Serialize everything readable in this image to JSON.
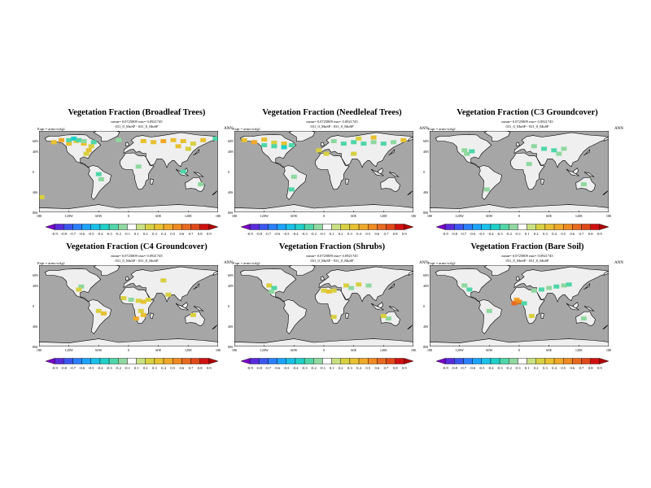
{
  "chart_data": [
    {
      "type": "heatmap",
      "title": "Vegetation Fraction (Broadleaf Trees)",
      "subtitle_stats": "mean= 0.0725809 rms= 0.0921745",
      "subtitle_case": "031_0_MuSP - 031_0_MuSP",
      "expt": "Expt = arms-tcrlg1",
      "season": "ANN",
      "lat_ticks": [
        "60N",
        "40N",
        "0",
        "40S",
        "80S"
      ],
      "lon_ticks": [
        "180",
        "120W",
        "60W",
        "0",
        "60E",
        "120E",
        "180"
      ],
      "colorbar_levels": [
        "-0.9",
        "-0.8",
        "-0.7",
        "-0.6",
        "-0.5",
        "-0.4",
        "-0.3",
        "-0.2",
        "-0.1",
        "0.1",
        "0.2",
        "0.3",
        "0.4",
        "0.5",
        "0.6",
        "0.7",
        "0.8",
        "0.9"
      ],
      "anomalies": [
        {
          "lon": -150,
          "lat": 58,
          "value": 0.3
        },
        {
          "lon": -135,
          "lat": 62,
          "value": 0.4
        },
        {
          "lon": -120,
          "lat": 55,
          "value": 0.3
        },
        {
          "lon": -105,
          "lat": 60,
          "value": 0.2
        },
        {
          "lon": -90,
          "lat": 55,
          "value": 0.3
        },
        {
          "lon": -75,
          "lat": 50,
          "value": 0.2
        },
        {
          "lon": -120,
          "lat": 62,
          "value": -0.3
        },
        {
          "lon": -110,
          "lat": 65,
          "value": -0.4
        },
        {
          "lon": -100,
          "lat": 62,
          "value": -0.3
        },
        {
          "lon": -90,
          "lat": 60,
          "value": -0.2
        },
        {
          "lon": -70,
          "lat": 58,
          "value": -0.3
        },
        {
          "lon": -80,
          "lat": 42,
          "value": 0.3
        },
        {
          "lon": -85,
          "lat": 35,
          "value": 0.2
        },
        {
          "lon": 30,
          "lat": 60,
          "value": 0.3
        },
        {
          "lon": 50,
          "lat": 58,
          "value": 0.3
        },
        {
          "lon": 70,
          "lat": 60,
          "value": 0.4
        },
        {
          "lon": 90,
          "lat": 62,
          "value": 0.3
        },
        {
          "lon": 110,
          "lat": 60,
          "value": 0.3
        },
        {
          "lon": 130,
          "lat": 55,
          "value": 0.2
        },
        {
          "lon": 150,
          "lat": 62,
          "value": 0.3
        },
        {
          "lon": 100,
          "lat": 50,
          "value": 0.3
        },
        {
          "lon": 120,
          "lat": 45,
          "value": 0.2
        },
        {
          "lon": -20,
          "lat": 62,
          "value": -0.2
        },
        {
          "lon": 20,
          "lat": 10,
          "value": -0.2
        },
        {
          "lon": -60,
          "lat": -5,
          "value": -0.3
        },
        {
          "lon": -55,
          "lat": -15,
          "value": -0.2
        },
        {
          "lon": 110,
          "lat": 0,
          "value": -0.3
        },
        {
          "lon": 145,
          "lat": -25,
          "value": -0.2
        },
        {
          "lon": -175,
          "lat": -50,
          "value": 0.2
        },
        {
          "lon": 175,
          "lat": 65,
          "value": -0.3
        }
      ]
    },
    {
      "type": "heatmap",
      "title": "Vegetation Fraction (Needleleaf Trees)",
      "subtitle_stats": "mean= 0.0725809 rms= 0.0921745",
      "subtitle_case": "031_0_MuSP - 031_0_MuSP",
      "expt": "Expt = arms-tcrlg1",
      "season": "ANN",
      "lat_ticks": [
        "60N",
        "40N",
        "0",
        "40S",
        "80S"
      ],
      "lon_ticks": [
        "180",
        "120W",
        "60W",
        "0",
        "60E",
        "120E",
        "180"
      ],
      "colorbar_levels": [
        "-0.9",
        "-0.8",
        "-0.7",
        "-0.6",
        "-0.5",
        "-0.4",
        "-0.3",
        "-0.2",
        "-0.1",
        "0.1",
        "0.2",
        "0.3",
        "0.4",
        "0.5",
        "0.6",
        "0.7",
        "0.8",
        "0.9"
      ],
      "anomalies": [
        {
          "lon": -160,
          "lat": 62,
          "value": 0.3
        },
        {
          "lon": -140,
          "lat": 58,
          "value": 0.4
        },
        {
          "lon": -120,
          "lat": 63,
          "value": 0.3
        },
        {
          "lon": -100,
          "lat": 57,
          "value": 0.2
        },
        {
          "lon": -80,
          "lat": 55,
          "value": 0.3
        },
        {
          "lon": -120,
          "lat": 52,
          "value": -0.3
        },
        {
          "lon": -100,
          "lat": 50,
          "value": -0.3
        },
        {
          "lon": -80,
          "lat": 48,
          "value": -0.4
        },
        {
          "lon": -65,
          "lat": 52,
          "value": -0.3
        },
        {
          "lon": 20,
          "lat": 60,
          "value": -0.2
        },
        {
          "lon": 40,
          "lat": 55,
          "value": -0.3
        },
        {
          "lon": 60,
          "lat": 58,
          "value": -0.3
        },
        {
          "lon": 80,
          "lat": 55,
          "value": -0.3
        },
        {
          "lon": 100,
          "lat": 58,
          "value": -0.2
        },
        {
          "lon": 120,
          "lat": 55,
          "value": -0.3
        },
        {
          "lon": 140,
          "lat": 58,
          "value": -0.2
        },
        {
          "lon": 160,
          "lat": 62,
          "value": 0.3
        },
        {
          "lon": 70,
          "lat": 65,
          "value": 0.2
        },
        {
          "lon": 100,
          "lat": 67,
          "value": 0.3
        },
        {
          "lon": -10,
          "lat": 42,
          "value": 0.2
        },
        {
          "lon": 5,
          "lat": 35,
          "value": 0.2
        },
        {
          "lon": -60,
          "lat": -10,
          "value": -0.2
        },
        {
          "lon": -65,
          "lat": -35,
          "value": -0.3
        },
        {
          "lon": 60,
          "lat": 35,
          "value": 0.2
        }
      ]
    },
    {
      "type": "heatmap",
      "title": "Vegetation Fraction (C3 Groundcover)",
      "subtitle_stats": "mean= 0.0725809 rms= 0.0921745",
      "subtitle_case": "031_0_MuSP - 031_0_MuSP",
      "expt": "Expt = arms-tcrlg1",
      "season": "ANN",
      "lat_ticks": [
        "60N",
        "40N",
        "0",
        "40S",
        "80S"
      ],
      "lon_ticks": [
        "180",
        "120W",
        "60W",
        "0",
        "60E",
        "120E",
        "180"
      ],
      "colorbar_levels": [
        "-0.9",
        "-0.8",
        "-0.7",
        "-0.6",
        "-0.5",
        "-0.4",
        "-0.3",
        "-0.2",
        "-0.1",
        "0.1",
        "0.2",
        "0.3",
        "0.4",
        "0.5",
        "0.6",
        "0.7",
        "0.8",
        "0.9"
      ],
      "anomalies": [
        {
          "lon": -105,
          "lat": 35,
          "value": -0.2
        },
        {
          "lon": -95,
          "lat": 40,
          "value": -0.3
        },
        {
          "lon": -110,
          "lat": 42,
          "value": -0.2
        },
        {
          "lon": 30,
          "lat": 50,
          "value": -0.2
        },
        {
          "lon": 50,
          "lat": 45,
          "value": -0.3
        },
        {
          "lon": 70,
          "lat": 42,
          "value": -0.3
        },
        {
          "lon": 90,
          "lat": 45,
          "value": -0.2
        },
        {
          "lon": 80,
          "lat": 35,
          "value": -0.2
        },
        {
          "lon": -65,
          "lat": -35,
          "value": -0.2
        },
        {
          "lon": 130,
          "lat": -25,
          "value": -0.2
        },
        {
          "lon": 20,
          "lat": 15,
          "value": -0.2
        }
      ]
    },
    {
      "type": "heatmap",
      "title": "Vegetation Fraction (C4 Groundcover)",
      "subtitle_stats": "mean= 0.0725809 rms= 0.0921745",
      "subtitle_case": "031_0_MuSP - 031_0_MuSP",
      "expt": "Expt = arms-tcrlg1",
      "season": "ANN",
      "lat_ticks": [
        "60N",
        "40N",
        "0",
        "40S",
        "80S"
      ],
      "lon_ticks": [
        "180",
        "120W",
        "60W",
        "0",
        "60E",
        "120E",
        "180"
      ],
      "colorbar_levels": [
        "-0.9",
        "-0.8",
        "-0.7",
        "-0.6",
        "-0.5",
        "-0.4",
        "-0.3",
        "-0.2",
        "-0.1",
        "0.1",
        "0.2",
        "0.3",
        "0.4",
        "0.5",
        "0.6",
        "0.7",
        "0.8",
        "0.9"
      ],
      "anomalies": [
        {
          "lon": -95,
          "lat": 38,
          "value": -0.2
        },
        {
          "lon": -100,
          "lat": 32,
          "value": 0.2
        },
        {
          "lon": -10,
          "lat": 15,
          "value": 0.2
        },
        {
          "lon": 5,
          "lat": 12,
          "value": -0.2
        },
        {
          "lon": 20,
          "lat": 10,
          "value": 0.2
        },
        {
          "lon": 30,
          "lat": 8,
          "value": 0.3
        },
        {
          "lon": 40,
          "lat": 12,
          "value": 0.2
        },
        {
          "lon": 25,
          "lat": -10,
          "value": 0.2
        },
        {
          "lon": 30,
          "lat": -18,
          "value": 0.3
        },
        {
          "lon": -60,
          "lat": -10,
          "value": 0.2
        },
        {
          "lon": -50,
          "lat": -15,
          "value": 0.3
        },
        {
          "lon": 80,
          "lat": 22,
          "value": 0.2
        },
        {
          "lon": 70,
          "lat": 50,
          "value": 0.2
        },
        {
          "lon": 130,
          "lat": -18,
          "value": 0.2
        },
        {
          "lon": 15,
          "lat": -25,
          "value": 0.4
        }
      ]
    },
    {
      "type": "heatmap",
      "title": "Vegetation Fraction (Shrubs)",
      "subtitle_stats": "mean= 0.0725809 rms= 0.0921745",
      "subtitle_case": "031_0_MuSP - 031_0_MuSP",
      "expt": "Expt = arms-tcrlg1",
      "season": "ANN",
      "lat_ticks": [
        "60N",
        "40N",
        "0",
        "40S",
        "80S"
      ],
      "lon_ticks": [
        "180",
        "120W",
        "60W",
        "0",
        "60E",
        "120E",
        "180"
      ],
      "colorbar_levels": [
        "-0.9",
        "-0.8",
        "-0.7",
        "-0.6",
        "-0.5",
        "-0.4",
        "-0.3",
        "-0.2",
        "-0.1",
        "0.1",
        "0.2",
        "0.3",
        "0.4",
        "0.5",
        "0.6",
        "0.7",
        "0.8",
        "0.9"
      ],
      "anomalies": [
        {
          "lon": -110,
          "lat": 40,
          "value": 0.2
        },
        {
          "lon": -100,
          "lat": 35,
          "value": -0.3
        },
        {
          "lon": -105,
          "lat": 28,
          "value": -0.2
        },
        {
          "lon": 0,
          "lat": 30,
          "value": 0.2
        },
        {
          "lon": 10,
          "lat": 28,
          "value": 0.3
        },
        {
          "lon": 20,
          "lat": 30,
          "value": 0.2
        },
        {
          "lon": 45,
          "lat": 40,
          "value": 0.2
        },
        {
          "lon": 55,
          "lat": 35,
          "value": -0.2
        },
        {
          "lon": 70,
          "lat": 42,
          "value": 0.2
        },
        {
          "lon": 90,
          "lat": 40,
          "value": -0.2
        },
        {
          "lon": 130,
          "lat": -25,
          "value": -0.2
        },
        {
          "lon": 120,
          "lat": -20,
          "value": 0.2
        },
        {
          "lon": 20,
          "lat": -22,
          "value": 0.2
        }
      ]
    },
    {
      "type": "heatmap",
      "title": "Vegetation Fraction (Bare Soil)",
      "subtitle_stats": "mean= 0.0725809 rms= 0.0921745",
      "subtitle_case": "031_0_MuSP - 031_0_MuSP",
      "expt": "Expt = arms-tcrlg1",
      "season": "ANN",
      "lat_ticks": [
        "60N",
        "40N",
        "0",
        "40S",
        "80S"
      ],
      "lon_ticks": [
        "180",
        "120W",
        "60W",
        "0",
        "60E",
        "120E",
        "180"
      ],
      "colorbar_levels": [
        "-0.9",
        "-0.8",
        "-0.7",
        "-0.6",
        "-0.5",
        "-0.4",
        "-0.3",
        "-0.2",
        "-0.1",
        "0.1",
        "0.2",
        "0.3",
        "0.4",
        "0.5",
        "0.6",
        "0.7",
        "0.8",
        "0.9"
      ],
      "anomalies": [
        {
          "lon": -110,
          "lat": 40,
          "value": -0.2
        },
        {
          "lon": -100,
          "lat": 32,
          "value": -0.3
        },
        {
          "lon": -5,
          "lat": 12,
          "value": 0.4
        },
        {
          "lon": -10,
          "lat": 5,
          "value": 0.6
        },
        {
          "lon": 0,
          "lat": 8,
          "value": 0.5
        },
        {
          "lon": 10,
          "lat": 5,
          "value": -0.3
        },
        {
          "lon": 30,
          "lat": 30,
          "value": -0.2
        },
        {
          "lon": 45,
          "lat": 32,
          "value": -0.3
        },
        {
          "lon": 60,
          "lat": 35,
          "value": -0.2
        },
        {
          "lon": 75,
          "lat": 38,
          "value": -0.3
        },
        {
          "lon": 90,
          "lat": 40,
          "value": -0.2
        },
        {
          "lon": 100,
          "lat": 42,
          "value": -0.3
        },
        {
          "lon": -60,
          "lat": -10,
          "value": -0.2
        },
        {
          "lon": 130,
          "lat": -25,
          "value": -0.2
        },
        {
          "lon": 25,
          "lat": -20,
          "value": 0.2
        }
      ]
    }
  ]
}
